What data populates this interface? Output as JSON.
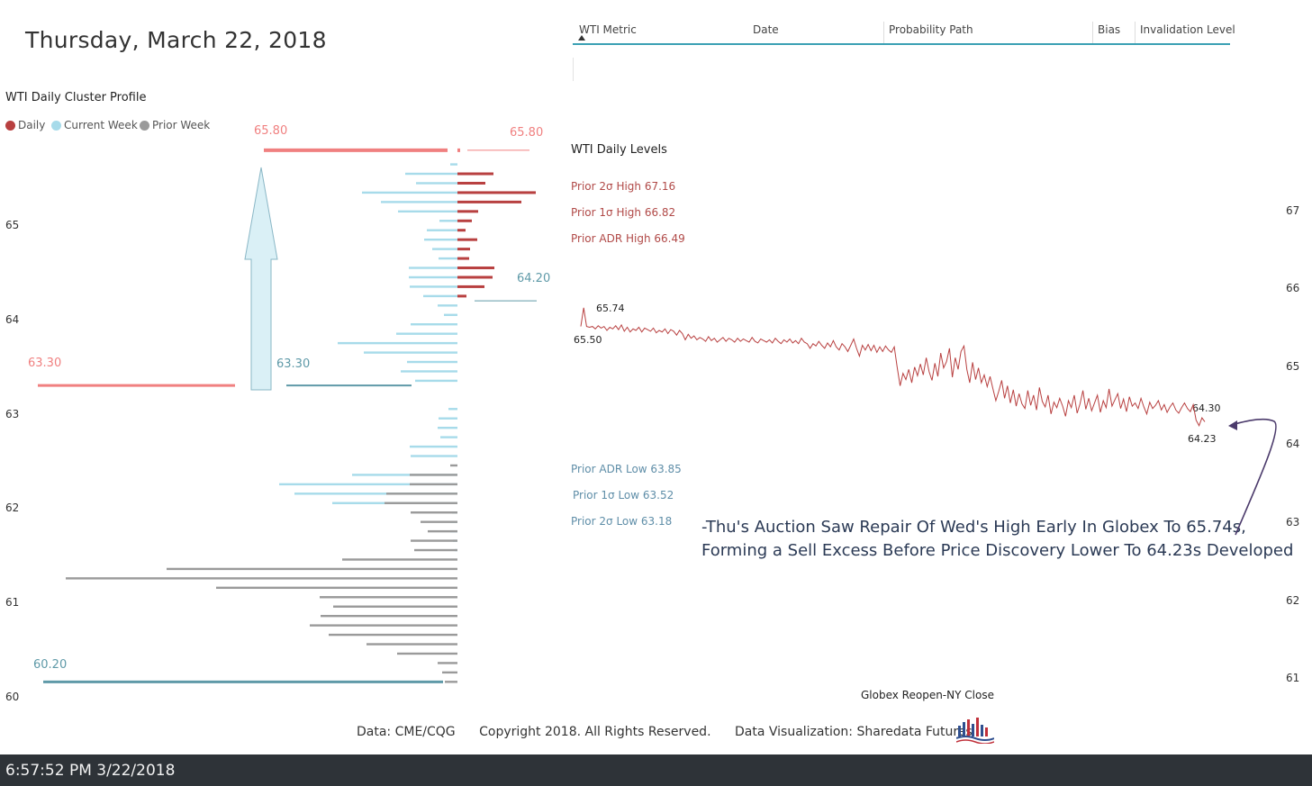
{
  "header": {
    "title": "Thursday, March 22, 2018"
  },
  "table": {
    "columns": [
      "WTI Metric",
      "Date",
      "Probability Path",
      "Bias",
      "Invalidation Level"
    ],
    "sort_column": "WTI Metric"
  },
  "colors": {
    "daily": "#b84040",
    "current_week": "#a7dbea",
    "prior_week": "#9a9a9a",
    "range_red": "#f08080",
    "range_teal": "#5f9aa8",
    "line": "#b84040",
    "arrow_fill": "#daf0f6",
    "arrow_stroke": "#8ab7c6",
    "annotation_arrow": "#4b3a6b"
  },
  "chart_data": [
    {
      "type": "bar",
      "orientation": "horizontal",
      "title": "WTI Daily Cluster Profile",
      "legend": [
        {
          "name": "Daily",
          "color": "#b84040"
        },
        {
          "name": "Current Week",
          "color": "#a7dbea"
        },
        {
          "name": "Prior Week",
          "color": "#9a9a9a"
        }
      ],
      "y_ticks": [
        60,
        61,
        62,
        63,
        64,
        65
      ],
      "ylim": [
        60.0,
        65.8
      ],
      "price_labels": {
        "daily_high_left": "65.80",
        "daily_high_right": "65.80",
        "daily_low_right": "64.20",
        "week_low_left": "63.30",
        "week_low_right": "63.30",
        "prior_low": "60.20"
      },
      "range_lines": [
        {
          "price": 65.8,
          "x0": 293,
          "x1": 497,
          "color": "#f08080",
          "width": 4
        },
        {
          "price": 65.8,
          "x0": 519,
          "x1": 588,
          "color": "#f08080",
          "width": 1
        },
        {
          "price": 64.2,
          "x0": 527,
          "x1": 596,
          "color": "#5f9aa8",
          "width": 1
        },
        {
          "price": 63.3,
          "x0": 42,
          "x1": 261,
          "color": "#f08080",
          "width": 3
        },
        {
          "price": 63.3,
          "x0": 318,
          "x1": 457,
          "color": "#5f9aa8",
          "width": 2
        },
        {
          "price": 60.15,
          "x0": 48,
          "x1": 492,
          "color": "#5f9aa8",
          "width": 3
        }
      ],
      "series": [
        {
          "name": "Daily",
          "side": "right",
          "bars": [
            [
              65.55,
              40
            ],
            [
              65.45,
              31
            ],
            [
              65.35,
              87
            ],
            [
              65.25,
              71
            ],
            [
              65.15,
              23
            ],
            [
              65.05,
              16
            ],
            [
              64.95,
              9
            ],
            [
              64.85,
              22
            ],
            [
              64.75,
              14
            ],
            [
              64.65,
              13
            ],
            [
              64.55,
              41
            ],
            [
              64.45,
              39
            ],
            [
              64.35,
              30
            ],
            [
              64.25,
              10
            ]
          ]
        },
        {
          "name": "Current Week",
          "side": "left",
          "bars": [
            [
              65.65,
              8
            ],
            [
              65.55,
              58
            ],
            [
              65.45,
              46
            ],
            [
              65.35,
              106
            ],
            [
              65.25,
              85
            ],
            [
              65.15,
              66
            ],
            [
              65.05,
              20
            ],
            [
              64.95,
              34
            ],
            [
              64.85,
              37
            ],
            [
              64.75,
              28
            ],
            [
              64.65,
              21
            ],
            [
              64.55,
              54
            ],
            [
              64.45,
              54
            ],
            [
              64.35,
              53
            ],
            [
              64.25,
              38
            ],
            [
              64.15,
              22
            ],
            [
              64.05,
              15
            ],
            [
              63.95,
              52
            ],
            [
              63.85,
              68
            ],
            [
              63.75,
              133
            ],
            [
              63.65,
              104
            ],
            [
              63.55,
              56
            ],
            [
              63.45,
              63
            ],
            [
              63.35,
              47
            ],
            [
              63.05,
              10
            ],
            [
              62.95,
              21
            ],
            [
              62.85,
              22
            ],
            [
              62.75,
              19
            ],
            [
              62.65,
              53
            ],
            [
              62.55,
              52
            ],
            [
              62.35,
              117
            ],
            [
              62.25,
              198
            ],
            [
              62.15,
              181
            ],
            [
              62.05,
              139
            ],
            [
              61.95,
              6
            ],
            [
              61.85,
              8
            ],
            [
              61.75,
              8
            ],
            [
              61.65,
              5
            ],
            [
              61.55,
              3
            ]
          ]
        },
        {
          "name": "Prior Week",
          "side": "left",
          "bars": [
            [
              62.45,
              8
            ],
            [
              62.35,
              53
            ],
            [
              62.25,
              53
            ],
            [
              62.15,
              79
            ],
            [
              62.05,
              81
            ],
            [
              61.95,
              52
            ],
            [
              61.85,
              41
            ],
            [
              61.75,
              33
            ],
            [
              61.65,
              52
            ],
            [
              61.55,
              48
            ],
            [
              61.45,
              128
            ],
            [
              61.35,
              323
            ],
            [
              61.25,
              435
            ],
            [
              61.15,
              268
            ],
            [
              61.05,
              153
            ],
            [
              60.95,
              138
            ],
            [
              60.85,
              152
            ],
            [
              60.75,
              164
            ],
            [
              60.65,
              143
            ],
            [
              60.55,
              101
            ],
            [
              60.45,
              67
            ],
            [
              60.35,
              22
            ],
            [
              60.25,
              17
            ],
            [
              60.15,
              14
            ]
          ]
        }
      ]
    },
    {
      "type": "line",
      "title": "WTI Daily Levels",
      "xlabel": "Globex Reopen-NY Close",
      "y_ticks": [
        61,
        62,
        63,
        64,
        65,
        66,
        67
      ],
      "ylim": [
        60.9,
        67.1
      ],
      "levels": [
        {
          "label": "Prior 2σ High 67.16",
          "value": 67.16,
          "group": "high"
        },
        {
          "label": "Prior 1σ High 66.82",
          "value": 66.82,
          "group": "high"
        },
        {
          "label": "Prior ADR High 66.49",
          "value": 66.49,
          "group": "high"
        },
        {
          "label": "Prior ADR Low 63.85",
          "value": 63.85,
          "group": "low"
        },
        {
          "label": "Prior 1σ Low 63.52",
          "value": 63.52,
          "group": "low"
        },
        {
          "label": "Prior 2σ Low 63.18",
          "value": 63.18,
          "group": "low"
        }
      ],
      "point_labels": {
        "high": "65.74",
        "open": "65.50",
        "last_high": "64.30",
        "low": "64.23"
      },
      "n_points": 220,
      "values": [
        65.5,
        65.74,
        65.5,
        65.49,
        65.5,
        65.47,
        65.51,
        65.48,
        65.5,
        65.45,
        65.49,
        65.47,
        65.51,
        65.46,
        65.52,
        65.44,
        65.49,
        65.43,
        65.47,
        65.45,
        65.49,
        65.43,
        65.48,
        65.46,
        65.44,
        65.48,
        65.42,
        65.45,
        65.43,
        65.47,
        65.41,
        65.46,
        65.44,
        65.39,
        65.45,
        65.41,
        65.33,
        65.4,
        65.35,
        65.38,
        65.33,
        65.36,
        65.34,
        65.31,
        65.37,
        65.32,
        65.35,
        65.3,
        65.33,
        65.36,
        65.31,
        65.35,
        65.33,
        65.3,
        65.35,
        65.31,
        65.34,
        65.32,
        65.3,
        65.36,
        65.31,
        65.29,
        65.34,
        65.32,
        65.3,
        65.33,
        65.29,
        65.35,
        65.31,
        65.28,
        65.33,
        65.3,
        65.34,
        65.29,
        65.32,
        65.28,
        65.35,
        65.3,
        65.28,
        65.22,
        65.28,
        65.25,
        65.31,
        65.26,
        65.22,
        65.29,
        65.24,
        65.32,
        65.24,
        65.2,
        65.28,
        65.24,
        65.18,
        65.26,
        65.34,
        65.22,
        65.12,
        65.26,
        65.2,
        65.27,
        65.19,
        65.26,
        65.17,
        65.24,
        65.18,
        65.25,
        65.2,
        65.17,
        65.24,
        64.98,
        64.74,
        64.9,
        64.82,
        64.95,
        64.78,
        64.98,
        64.87,
        65.02,
        64.88,
        65.1,
        64.92,
        64.81,
        65.03,
        64.86,
        65.16,
        64.97,
        65.05,
        65.22,
        64.85,
        65.1,
        64.95,
        65.18,
        65.25,
        64.95,
        64.78,
        65.04,
        64.82,
        64.97,
        64.78,
        64.88,
        64.73,
        64.86,
        64.7,
        64.55,
        64.67,
        64.81,
        64.58,
        64.74,
        64.52,
        64.69,
        64.48,
        64.64,
        64.51,
        64.45,
        64.68,
        64.49,
        64.62,
        64.43,
        64.72,
        64.54,
        64.47,
        64.62,
        64.38,
        64.53,
        64.46,
        64.58,
        64.48,
        64.35,
        64.55,
        64.46,
        64.62,
        64.39,
        64.51,
        64.68,
        64.44,
        64.58,
        64.42,
        64.52,
        64.62,
        64.4,
        64.55,
        64.46,
        64.7,
        64.48,
        64.56,
        64.64,
        64.45,
        64.57,
        64.41,
        64.6,
        64.48,
        64.52,
        64.45,
        64.58,
        64.47,
        64.38,
        64.53,
        64.45,
        64.49,
        64.55,
        64.43,
        64.5,
        64.4,
        64.47,
        64.52,
        64.43,
        64.39,
        64.46,
        64.52,
        64.45,
        64.41,
        64.5,
        64.3,
        64.23,
        64.33,
        64.28
      ]
    }
  ],
  "annotation": {
    "line1": "-Thu's Auction Saw Repair Of Wed's High Early In Globex To 65.74s,",
    "line2": "Forming a Sell Excess Before Price Discovery Lower To 64.23s Developed"
  },
  "footer": {
    "data_source": "Data: CME/CQG",
    "copyright": "Copyright 2018. All Rights Reserved.",
    "visualization": "Data Visualization: Sharedata Futures",
    "logo_icon": "sharedata-logo-icon"
  },
  "status": {
    "time": "6:57:52 PM 3/22/2018"
  }
}
